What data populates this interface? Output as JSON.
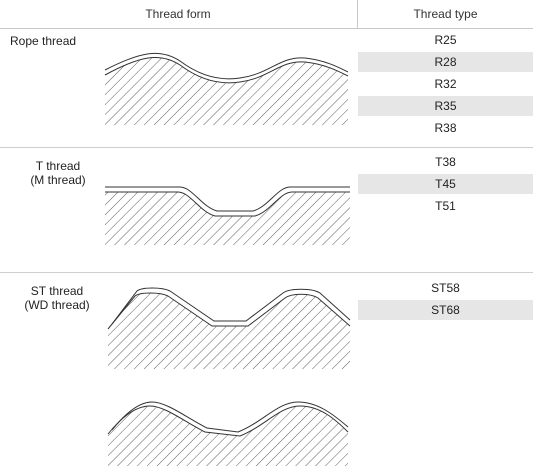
{
  "header": {
    "thread_form": "Thread form",
    "thread_type": "Thread type"
  },
  "rows": [
    {
      "name_lines": [
        "Rope thread"
      ],
      "types": [
        "R25",
        "R28",
        "R32",
        "R35",
        "R38"
      ]
    },
    {
      "name_lines": [
        "T thread",
        "(M thread)"
      ],
      "types": [
        "T38",
        "T45",
        "T51"
      ]
    },
    {
      "name_lines": [
        "ST thread",
        "(WD thread)"
      ],
      "types": [
        "ST58",
        "ST68"
      ]
    }
  ]
}
